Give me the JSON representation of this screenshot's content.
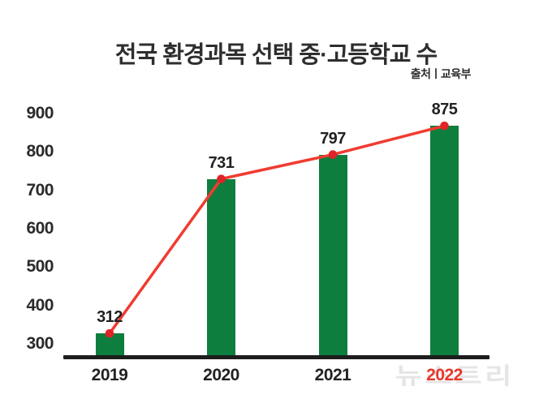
{
  "title": "전국 환경과목 선택 중·고등학교 수",
  "source": "출처ㅣ교육부",
  "watermark": "뉴스트리",
  "colors": {
    "background": "#ffffff",
    "bar": "#0e7e3e",
    "line": "#f13b31",
    "marker": "#de2428",
    "axis_line": "#1d1d1d",
    "text": "#222222",
    "highlight_year": "#e8372c",
    "watermark": "#e5e5e5"
  },
  "chart_data": {
    "type": "bar",
    "overlay": "line-with-markers",
    "title": "전국 환경과목 선택 중·고등학교 수",
    "source": "출처ㅣ교육부",
    "categories": [
      "2019",
      "2020",
      "2021",
      "2022"
    ],
    "values": [
      312,
      731,
      797,
      875
    ],
    "value_labels": [
      "312",
      "731",
      "797",
      "875"
    ],
    "xlabel": "",
    "ylabel": "",
    "yticks": [
      900,
      800,
      700,
      600,
      500,
      400,
      300
    ],
    "ylim": [
      266,
      915
    ],
    "grid": false,
    "legend": "none",
    "highlighted_category": "2022"
  }
}
